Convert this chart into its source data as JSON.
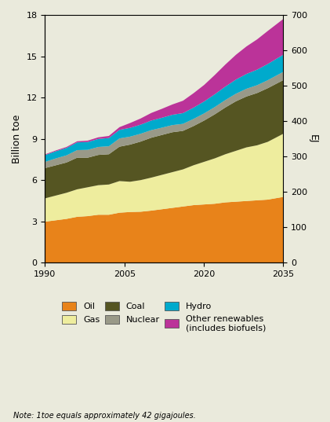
{
  "years": [
    1990,
    1992,
    1994,
    1996,
    1998,
    2000,
    2002,
    2004,
    2006,
    2008,
    2010,
    2012,
    2014,
    2016,
    2018,
    2020,
    2022,
    2024,
    2026,
    2028,
    2030,
    2032,
    2035
  ],
  "oil": [
    3.0,
    3.1,
    3.2,
    3.35,
    3.4,
    3.5,
    3.5,
    3.65,
    3.7,
    3.72,
    3.8,
    3.9,
    4.0,
    4.1,
    4.2,
    4.25,
    4.3,
    4.4,
    4.45,
    4.5,
    4.55,
    4.6,
    4.8
  ],
  "gas": [
    1.7,
    1.8,
    1.9,
    2.0,
    2.1,
    2.15,
    2.2,
    2.3,
    2.2,
    2.3,
    2.4,
    2.5,
    2.6,
    2.7,
    2.9,
    3.1,
    3.3,
    3.5,
    3.7,
    3.9,
    4.0,
    4.2,
    4.6
  ],
  "coal": [
    2.2,
    2.2,
    2.2,
    2.3,
    2.15,
    2.2,
    2.2,
    2.5,
    2.7,
    2.8,
    2.9,
    2.9,
    2.9,
    2.8,
    2.85,
    3.0,
    3.2,
    3.4,
    3.6,
    3.7,
    3.8,
    3.9,
    3.9
  ],
  "nuclear": [
    0.45,
    0.5,
    0.52,
    0.55,
    0.57,
    0.58,
    0.58,
    0.6,
    0.58,
    0.57,
    0.55,
    0.53,
    0.52,
    0.51,
    0.52,
    0.52,
    0.53,
    0.54,
    0.55,
    0.56,
    0.57,
    0.58,
    0.6
  ],
  "hydro": [
    0.5,
    0.52,
    0.54,
    0.56,
    0.57,
    0.58,
    0.6,
    0.62,
    0.64,
    0.66,
    0.7,
    0.72,
    0.75,
    0.78,
    0.82,
    0.87,
    0.93,
    0.98,
    1.03,
    1.08,
    1.13,
    1.18,
    1.25
  ],
  "renewables": [
    0.05,
    0.06,
    0.07,
    0.08,
    0.1,
    0.12,
    0.15,
    0.2,
    0.35,
    0.45,
    0.55,
    0.65,
    0.75,
    0.9,
    1.05,
    1.2,
    1.4,
    1.6,
    1.8,
    2.0,
    2.2,
    2.4,
    2.6
  ],
  "colors": {
    "oil": "#E8831A",
    "gas": "#EEED9E",
    "coal": "#555522",
    "nuclear": "#999988",
    "hydro": "#00AACC",
    "renewables": "#BB3399"
  },
  "ylabel_left": "Billion toe",
  "ylabel_right": "EJ",
  "ylim_left": [
    0,
    18
  ],
  "ylim_right": [
    0,
    700
  ],
  "xlim": [
    1990,
    2035
  ],
  "xticks": [
    1990,
    2005,
    2020,
    2035
  ],
  "yticks_left": [
    0,
    3,
    6,
    9,
    12,
    15,
    18
  ],
  "yticks_right": [
    0,
    100,
    200,
    300,
    400,
    500,
    600,
    700
  ],
  "bg_color": "#EAEADC",
  "note": "Note: 1toe equals approximately 42 gigajoules.",
  "legend": [
    {
      "label": "Oil",
      "color": "#E8831A"
    },
    {
      "label": "Gas",
      "color": "#EEED9E"
    },
    {
      "label": "Coal",
      "color": "#555522"
    },
    {
      "label": "Nuclear",
      "color": "#999988"
    },
    {
      "label": "Hydro",
      "color": "#00AACC"
    },
    {
      "label": "Other renewables\n(includes biofuels)",
      "color": "#BB3399"
    }
  ]
}
